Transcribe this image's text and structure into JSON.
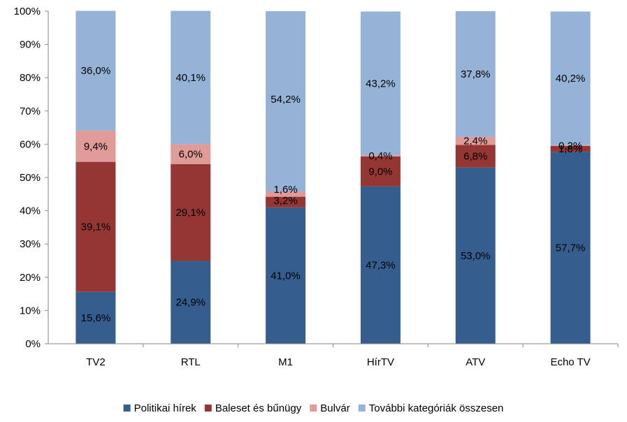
{
  "chart_data": {
    "type": "bar",
    "stacked": true,
    "categories": [
      "TV2",
      "RTL",
      "M1",
      "HírTV",
      "ATV",
      "Echo TV"
    ],
    "series": [
      {
        "name": "Politikai hírek",
        "color": "#355e8f",
        "values": [
          15.6,
          24.9,
          41.0,
          47.3,
          53.0,
          57.7
        ],
        "labels": [
          "15,6%",
          "24,9%",
          "41,0%",
          "47,3%",
          "53,0%",
          "57,7%"
        ]
      },
      {
        "name": "Baleset és bűnügy",
        "color": "#943634",
        "values": [
          39.1,
          29.1,
          3.2,
          9.0,
          6.8,
          1.8
        ],
        "labels": [
          "39,1%",
          "29,1%",
          "3,2%",
          "9,0%",
          "6,8%",
          "1,8%"
        ]
      },
      {
        "name": "Bulvár",
        "color": "#e09a98",
        "values": [
          9.4,
          6.0,
          1.6,
          0.4,
          2.4,
          0.2
        ],
        "labels": [
          "9,4%",
          "6,0%",
          "1,6%",
          "0,4%",
          "2,4%",
          "0,2%"
        ]
      },
      {
        "name": "További kategóriák összesen",
        "color": "#95b3d7",
        "values": [
          36.0,
          40.1,
          54.2,
          43.2,
          37.8,
          40.2
        ],
        "labels": [
          "36,0%",
          "40,1%",
          "54,2%",
          "43,2%",
          "37,8%",
          "40,2%"
        ]
      }
    ],
    "y_ticks": [
      "0%",
      "10%",
      "20%",
      "30%",
      "40%",
      "50%",
      "60%",
      "70%",
      "80%",
      "90%",
      "100%"
    ],
    "ylim": [
      0,
      100
    ],
    "grid": false,
    "legend_position": "bottom"
  }
}
